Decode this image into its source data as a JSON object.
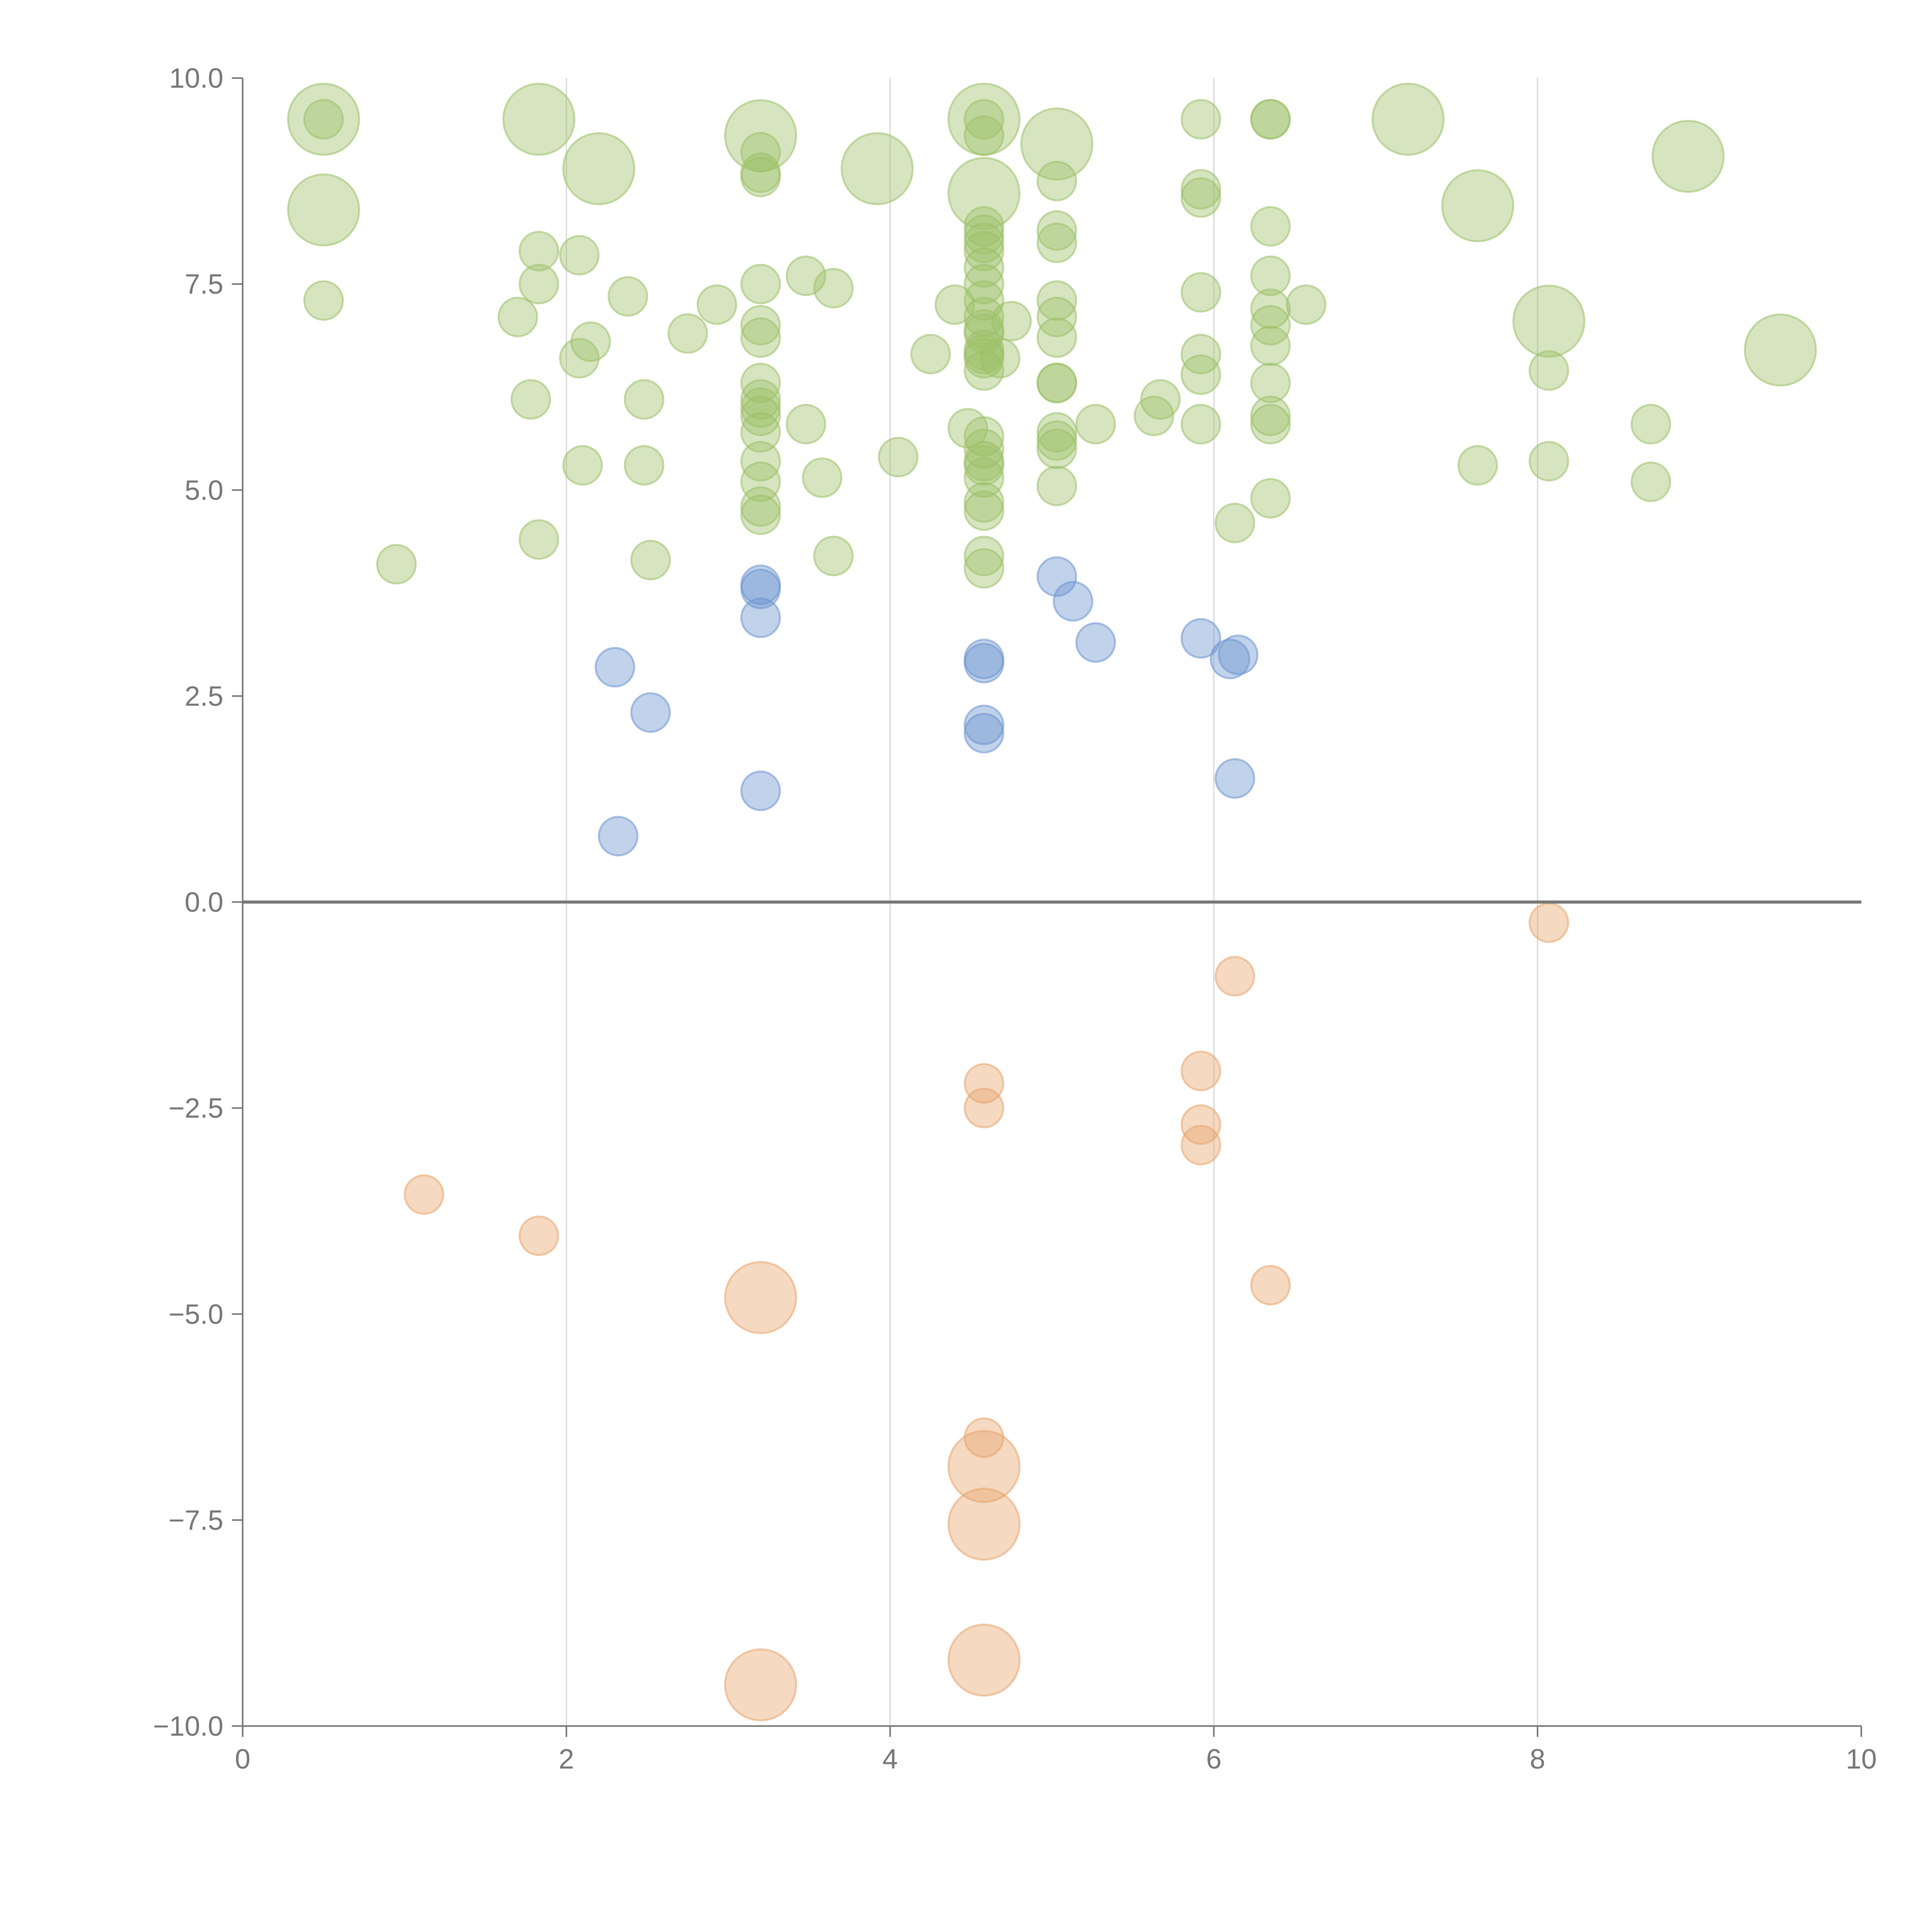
{
  "chart_data": {
    "type": "scatter",
    "title": "",
    "xlabel": "",
    "ylabel": "",
    "xlim": [
      0,
      10
    ],
    "ylim": [
      -10,
      10
    ],
    "x_ticks": [
      "0",
      "2",
      "4",
      "6",
      "8",
      "10"
    ],
    "y_ticks": [
      "−10.0",
      "−7.5",
      "−5.0",
      "−2.5",
      "0.0",
      "2.5",
      "5.0",
      "7.5",
      "10.0"
    ],
    "x_tick_values": [
      0,
      2,
      4,
      6,
      8,
      10
    ],
    "y_tick_values": [
      -10,
      -7.5,
      -5,
      -2.5,
      0,
      2.5,
      5,
      7.5,
      10
    ],
    "vertical_grid_at": [
      2,
      4,
      6,
      8
    ],
    "zero_line": true,
    "legend": "none",
    "colors": {
      "high": "#9dc068",
      "mid": "#6b93cf",
      "negative": "#e8a46c"
    },
    "series": [
      {
        "color_key": "high",
        "points": [
          [
            0.5,
            9.5,
            3
          ],
          [
            0.5,
            9.5,
            1
          ],
          [
            0.5,
            8.4,
            3
          ],
          [
            0.5,
            7.3,
            1
          ],
          [
            0.95,
            4.1,
            1
          ],
          [
            1.7,
            7.1,
            1
          ],
          [
            1.78,
            6.1,
            1
          ],
          [
            1.83,
            9.5,
            3
          ],
          [
            1.83,
            7.9,
            1
          ],
          [
            1.83,
            7.5,
            1
          ],
          [
            1.83,
            4.4,
            1
          ],
          [
            2.08,
            7.85,
            1
          ],
          [
            2.08,
            6.6,
            1
          ],
          [
            2.1,
            5.3,
            1
          ],
          [
            2.15,
            6.8,
            1
          ],
          [
            2.2,
            8.9,
            3
          ],
          [
            2.38,
            7.35,
            1
          ],
          [
            2.48,
            6.1,
            1
          ],
          [
            2.48,
            5.3,
            1
          ],
          [
            2.52,
            4.15,
            1
          ],
          [
            2.75,
            6.9,
            1
          ],
          [
            2.93,
            7.25,
            1
          ],
          [
            3.2,
            9.3,
            3
          ],
          [
            3.2,
            9.1,
            1
          ],
          [
            3.2,
            8.8,
            1
          ],
          [
            3.2,
            8.85,
            1
          ],
          [
            3.2,
            7.5,
            1
          ],
          [
            3.2,
            7.0,
            1
          ],
          [
            3.2,
            6.85,
            1
          ],
          [
            3.2,
            6.3,
            1
          ],
          [
            3.2,
            6.1,
            1
          ],
          [
            3.2,
            6.0,
            1
          ],
          [
            3.2,
            5.9,
            1
          ],
          [
            3.2,
            5.7,
            1
          ],
          [
            3.2,
            5.35,
            1
          ],
          [
            3.2,
            5.1,
            1
          ],
          [
            3.2,
            4.8,
            1
          ],
          [
            3.2,
            4.7,
            1
          ],
          [
            3.48,
            7.6,
            1
          ],
          [
            3.48,
            5.8,
            1
          ],
          [
            3.58,
            5.15,
            1
          ],
          [
            3.65,
            7.45,
            1
          ],
          [
            3.65,
            4.2,
            1
          ],
          [
            3.92,
            8.9,
            3
          ],
          [
            4.05,
            5.4,
            1
          ],
          [
            4.25,
            6.65,
            1
          ],
          [
            4.4,
            7.25,
            1
          ],
          [
            4.48,
            5.75,
            1
          ],
          [
            4.58,
            9.5,
            3
          ],
          [
            4.58,
            9.5,
            1
          ],
          [
            4.58,
            9.3,
            1
          ],
          [
            4.58,
            8.6,
            3
          ],
          [
            4.58,
            8.2,
            1
          ],
          [
            4.58,
            8.1,
            1
          ],
          [
            4.58,
            8.0,
            1
          ],
          [
            4.58,
            7.9,
            1
          ],
          [
            4.58,
            7.7,
            1
          ],
          [
            4.58,
            7.5,
            1
          ],
          [
            4.58,
            7.3,
            1
          ],
          [
            4.58,
            7.1,
            1
          ],
          [
            4.58,
            6.95,
            1
          ],
          [
            4.58,
            6.9,
            1
          ],
          [
            4.58,
            6.7,
            1
          ],
          [
            4.58,
            6.65,
            1
          ],
          [
            4.58,
            6.6,
            1
          ],
          [
            4.58,
            6.45,
            1
          ],
          [
            4.58,
            5.65,
            1
          ],
          [
            4.58,
            5.5,
            1
          ],
          [
            4.58,
            5.35,
            1
          ],
          [
            4.58,
            5.3,
            1
          ],
          [
            4.58,
            5.15,
            1
          ],
          [
            4.58,
            4.85,
            1
          ],
          [
            4.58,
            4.75,
            1
          ],
          [
            4.58,
            4.2,
            1
          ],
          [
            4.58,
            4.05,
            1
          ],
          [
            4.68,
            6.6,
            1
          ],
          [
            4.75,
            7.05,
            1
          ],
          [
            5.03,
            9.2,
            3
          ],
          [
            5.03,
            8.75,
            1
          ],
          [
            5.03,
            8.15,
            1
          ],
          [
            5.03,
            8.0,
            1
          ],
          [
            5.03,
            7.3,
            1
          ],
          [
            5.03,
            7.1,
            1
          ],
          [
            5.03,
            6.85,
            1
          ],
          [
            5.03,
            6.3,
            1
          ],
          [
            5.03,
            6.3,
            1
          ],
          [
            5.03,
            5.7,
            1
          ],
          [
            5.03,
            5.6,
            1
          ],
          [
            5.03,
            5.5,
            1
          ],
          [
            5.03,
            5.05,
            1
          ],
          [
            5.27,
            5.8,
            1
          ],
          [
            5.63,
            5.9,
            1
          ],
          [
            5.67,
            6.1,
            1
          ],
          [
            5.92,
            9.5,
            1
          ],
          [
            5.92,
            8.65,
            1
          ],
          [
            5.92,
            8.55,
            1
          ],
          [
            5.92,
            7.4,
            1
          ],
          [
            5.92,
            6.65,
            1
          ],
          [
            5.92,
            6.4,
            1
          ],
          [
            5.92,
            5.8,
            1
          ],
          [
            6.13,
            4.6,
            1
          ],
          [
            6.35,
            9.5,
            1
          ],
          [
            6.35,
            9.5,
            1
          ],
          [
            6.35,
            8.2,
            1
          ],
          [
            6.35,
            7.6,
            1
          ],
          [
            6.35,
            7.2,
            1
          ],
          [
            6.35,
            7.0,
            1
          ],
          [
            6.35,
            6.75,
            1
          ],
          [
            6.35,
            6.3,
            1
          ],
          [
            6.35,
            5.9,
            1
          ],
          [
            6.35,
            5.8,
            1
          ],
          [
            6.35,
            4.9,
            1
          ],
          [
            6.57,
            7.25,
            1
          ],
          [
            7.2,
            9.5,
            3
          ],
          [
            7.63,
            8.45,
            3
          ],
          [
            7.63,
            5.3,
            1
          ],
          [
            8.07,
            7.05,
            3
          ],
          [
            8.07,
            6.45,
            1
          ],
          [
            8.07,
            5.35,
            1
          ],
          [
            8.7,
            5.8,
            1
          ],
          [
            8.7,
            5.1,
            1
          ],
          [
            8.93,
            9.05,
            3
          ],
          [
            9.5,
            6.7,
            3
          ]
        ]
      },
      {
        "color_key": "mid",
        "points": [
          [
            2.3,
            2.85,
            1
          ],
          [
            2.32,
            0.8,
            1
          ],
          [
            2.52,
            2.3,
            1
          ],
          [
            3.2,
            3.85,
            1
          ],
          [
            3.2,
            3.8,
            1
          ],
          [
            3.2,
            3.45,
            1
          ],
          [
            3.2,
            1.35,
            1
          ],
          [
            4.58,
            2.95,
            1
          ],
          [
            4.58,
            2.9,
            1
          ],
          [
            4.58,
            2.15,
            1
          ],
          [
            4.58,
            2.05,
            1
          ],
          [
            5.03,
            3.95,
            1
          ],
          [
            5.13,
            3.65,
            1
          ],
          [
            5.27,
            3.15,
            1
          ],
          [
            5.92,
            3.2,
            1
          ],
          [
            6.1,
            2.95,
            1
          ],
          [
            6.15,
            3.0,
            1
          ],
          [
            6.13,
            1.5,
            1
          ]
        ]
      },
      {
        "color_key": "negative",
        "points": [
          [
            1.12,
            -3.55,
            1
          ],
          [
            1.83,
            -4.05,
            1
          ],
          [
            3.2,
            -4.8,
            3
          ],
          [
            3.2,
            -9.5,
            3
          ],
          [
            4.58,
            -2.2,
            1
          ],
          [
            4.58,
            -2.5,
            1
          ],
          [
            4.58,
            -6.5,
            1
          ],
          [
            4.58,
            -6.85,
            3
          ],
          [
            4.58,
            -7.55,
            3
          ],
          [
            4.58,
            -9.2,
            3
          ],
          [
            5.92,
            -2.05,
            1
          ],
          [
            5.92,
            -2.7,
            1
          ],
          [
            5.92,
            -2.95,
            1
          ],
          [
            6.13,
            -0.9,
            1
          ],
          [
            6.35,
            -4.65,
            1
          ],
          [
            8.07,
            -0.25,
            1
          ]
        ]
      }
    ]
  }
}
